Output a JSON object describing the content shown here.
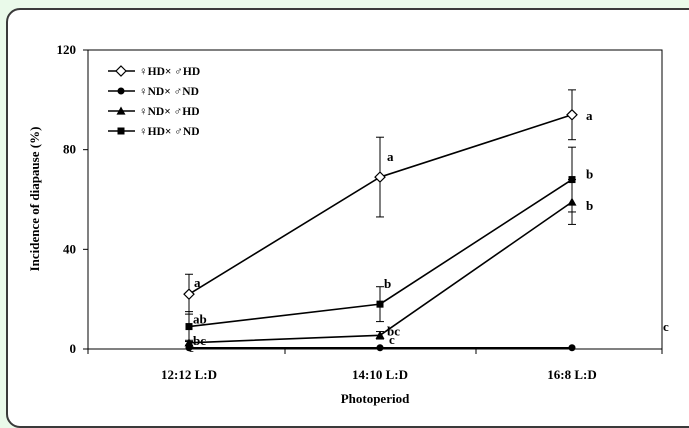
{
  "chart_data": {
    "type": "line",
    "xlabel": "Photoperiod",
    "ylabel": "Incidence of diapause (%)",
    "categories": [
      "12:12 L:D",
      "14:10 L:D",
      "16:8 L:D"
    ],
    "ylim": [
      0,
      120
    ],
    "yticks": [
      0,
      40,
      80,
      120
    ],
    "grid": false,
    "legend_position": "top-left",
    "series": [
      {
        "name": "♀HD× ♂HD",
        "marker": "open-diamond",
        "values": [
          22,
          69,
          94
        ],
        "errors": [
          8,
          16,
          10
        ],
        "labels": [
          "a",
          "a",
          "a"
        ]
      },
      {
        "name": "♀ND× ♂ND",
        "marker": "circle",
        "values": [
          0.5,
          0.5,
          0.5
        ],
        "errors": [
          0,
          0,
          0
        ],
        "labels": [
          "c",
          "c",
          "c"
        ]
      },
      {
        "name": "♀ND× ♂HD",
        "marker": "triangle",
        "values": [
          2.5,
          5.5,
          59
        ],
        "errors": [
          1,
          1.5,
          9
        ],
        "labels": [
          "bc",
          "bc",
          "b"
        ]
      },
      {
        "name": "♀HD× ♂ND",
        "marker": "square",
        "values": [
          9,
          18,
          68
        ],
        "errors": [
          6,
          7,
          13
        ],
        "labels": [
          "ab",
          "b",
          "b"
        ]
      }
    ]
  }
}
